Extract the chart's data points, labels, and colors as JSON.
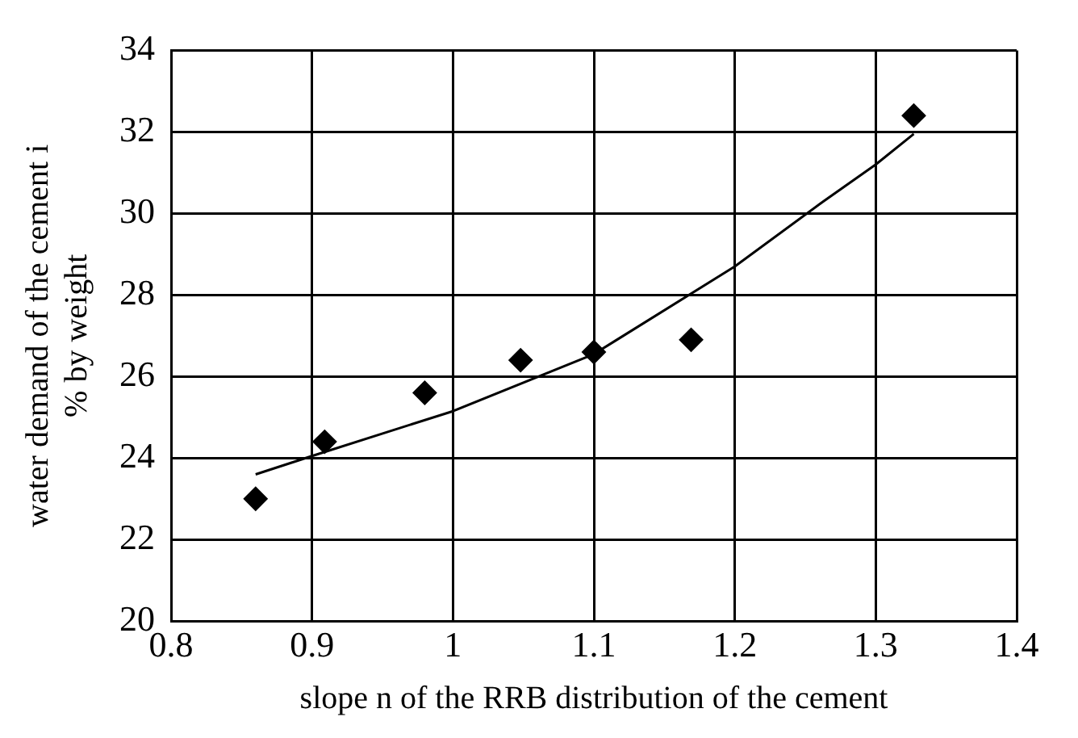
{
  "chart_data": {
    "type": "scatter",
    "xlabel": "slope n of the RRB distribution of the cement",
    "ylabel": "water demand of the cement i\n% by weight",
    "xlim": [
      0.8,
      1.4
    ],
    "xticks": [
      0.8,
      0.9,
      1,
      1.1,
      1.2,
      1.3,
      1.4
    ],
    "ylim": [
      20,
      34
    ],
    "yticks": [
      20,
      22,
      24,
      26,
      28,
      30,
      32,
      34
    ],
    "grid": true,
    "legend": false,
    "marker": "diamond",
    "series": [
      {
        "type": "scatter",
        "color": "#000000",
        "x": [
          0.86,
          0.909,
          0.98,
          1.048,
          1.1,
          1.169,
          1.327
        ],
        "values": [
          23.0,
          24.4,
          25.6,
          26.4,
          26.6,
          26.9,
          32.4
        ]
      },
      {
        "type": "line",
        "color": "#000000",
        "marker": "none",
        "x": [
          0.86,
          0.9,
          1.0,
          1.1,
          1.2,
          1.263,
          1.3,
          1.327
        ],
        "values": [
          23.6,
          24.05,
          25.15,
          26.55,
          28.7,
          30.3,
          31.2,
          31.95
        ]
      }
    ]
  }
}
